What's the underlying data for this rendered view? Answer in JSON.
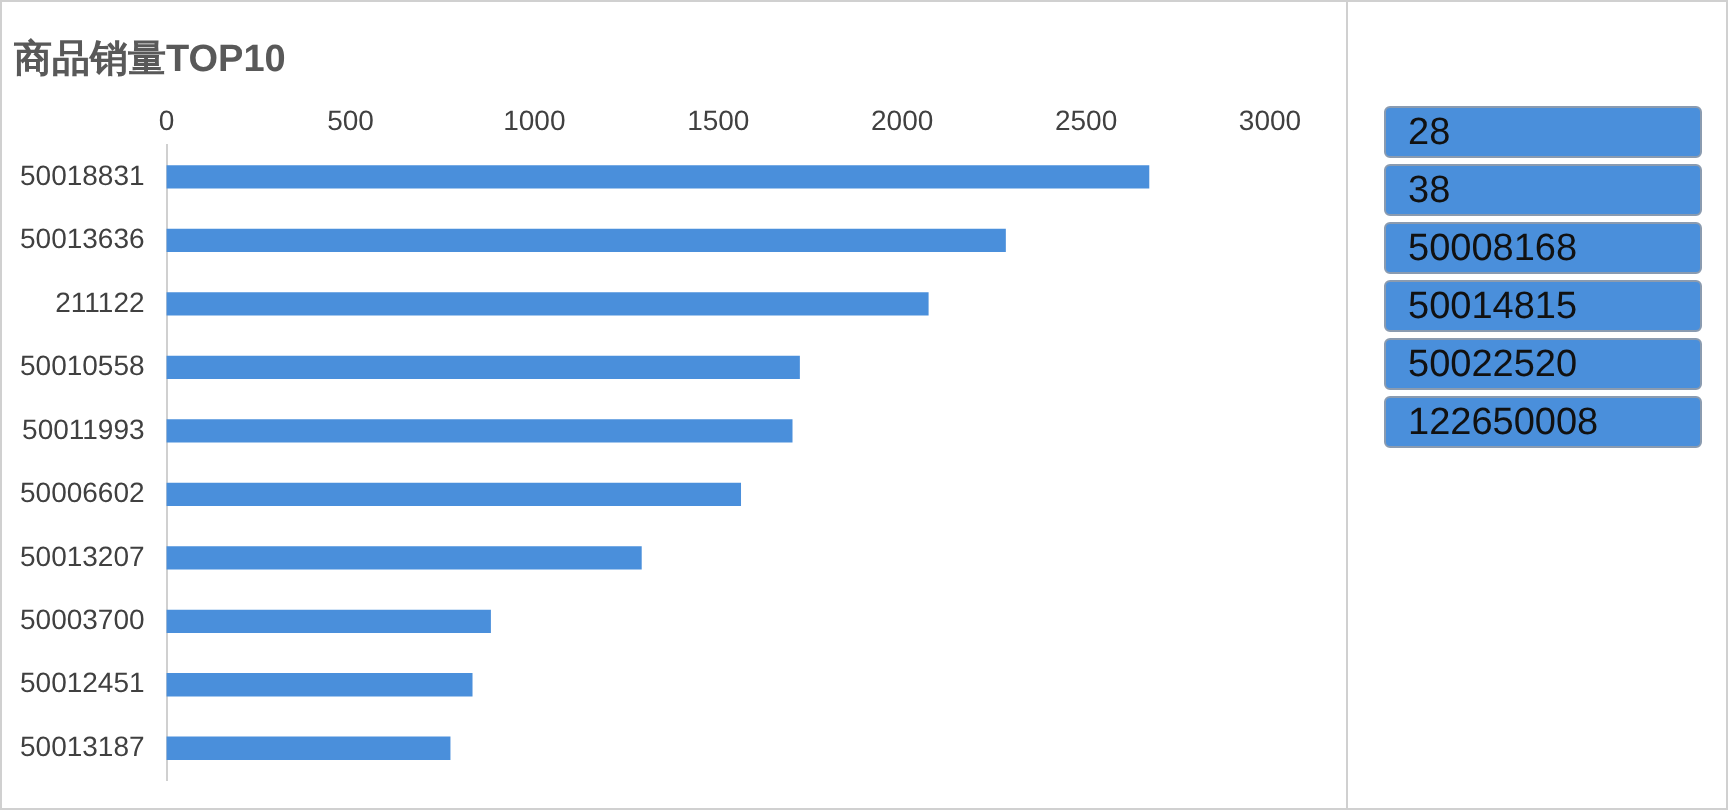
{
  "chart_data": [
    {
      "type": "bar",
      "orientation": "horizontal",
      "title": "商品销量TOP10",
      "categories": [
        "50018831",
        "50013636",
        "211122",
        "50010558",
        "50011993",
        "50006602",
        "50013207",
        "50003700",
        "50012451",
        "50013187"
      ],
      "values": [
        2670,
        2280,
        2070,
        1720,
        1700,
        1560,
        1290,
        880,
        830,
        770
      ],
      "color": "#4a8fdb",
      "xlim": [
        0,
        3000
      ],
      "xticks": [
        0,
        500,
        1000,
        1500,
        2000,
        2500,
        3000
      ]
    },
    {
      "type": "other",
      "annotations": [
        "28",
        "38",
        "50008168",
        "50014815",
        "50022520",
        "122650008"
      ]
    }
  ]
}
